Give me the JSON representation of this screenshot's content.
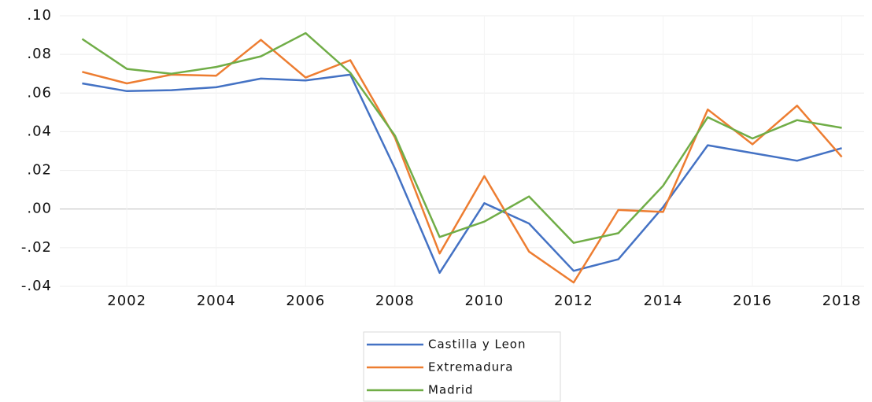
{
  "chart_data": {
    "type": "line",
    "categories": [
      null,
      "2002",
      null,
      "2004",
      null,
      "2006",
      null,
      "2008",
      null,
      "2010",
      null,
      "2012",
      null,
      "2014",
      null,
      "2016",
      null,
      "2018"
    ],
    "series": [
      {
        "name": "Castilla y Leon",
        "color": "#4472c4",
        "values": [
          0.065,
          0.061,
          0.0615,
          0.063,
          0.0675,
          0.0665,
          0.0695,
          0.021,
          -0.033,
          0.003,
          -0.0075,
          -0.032,
          -0.026,
          0.001,
          0.033,
          0.029,
          0.025,
          0.0315
        ]
      },
      {
        "name": "Extremadura",
        "color": "#ed7d31",
        "values": [
          0.071,
          0.065,
          0.0695,
          0.069,
          0.0875,
          0.068,
          0.077,
          0.037,
          -0.023,
          0.017,
          -0.022,
          -0.038,
          -0.0005,
          -0.0015,
          0.0515,
          0.0335,
          0.0535,
          0.027
        ]
      },
      {
        "name": "Madrid",
        "color": "#70ad47",
        "values": [
          0.088,
          0.0725,
          0.07,
          0.0735,
          0.079,
          0.091,
          0.0705,
          0.038,
          -0.0145,
          -0.0065,
          0.0065,
          -0.0175,
          -0.0125,
          0.012,
          0.0475,
          0.0365,
          0.046,
          0.042
        ]
      }
    ],
    "ylim": [
      -0.04,
      0.1
    ],
    "yticks": [
      {
        "value": -0.04,
        "label": "-.04"
      },
      {
        "value": -0.02,
        "label": "-.02"
      },
      {
        "value": 0,
        "label": ".00"
      },
      {
        "value": 0.02,
        "label": ".02"
      },
      {
        "value": 0.04,
        "label": ".04"
      },
      {
        "value": 0.06,
        "label": ".06"
      },
      {
        "value": 0.08,
        "label": ".08"
      },
      {
        "value": 0.1,
        "label": ".10"
      }
    ],
    "grid": true,
    "legend": "bottom"
  }
}
